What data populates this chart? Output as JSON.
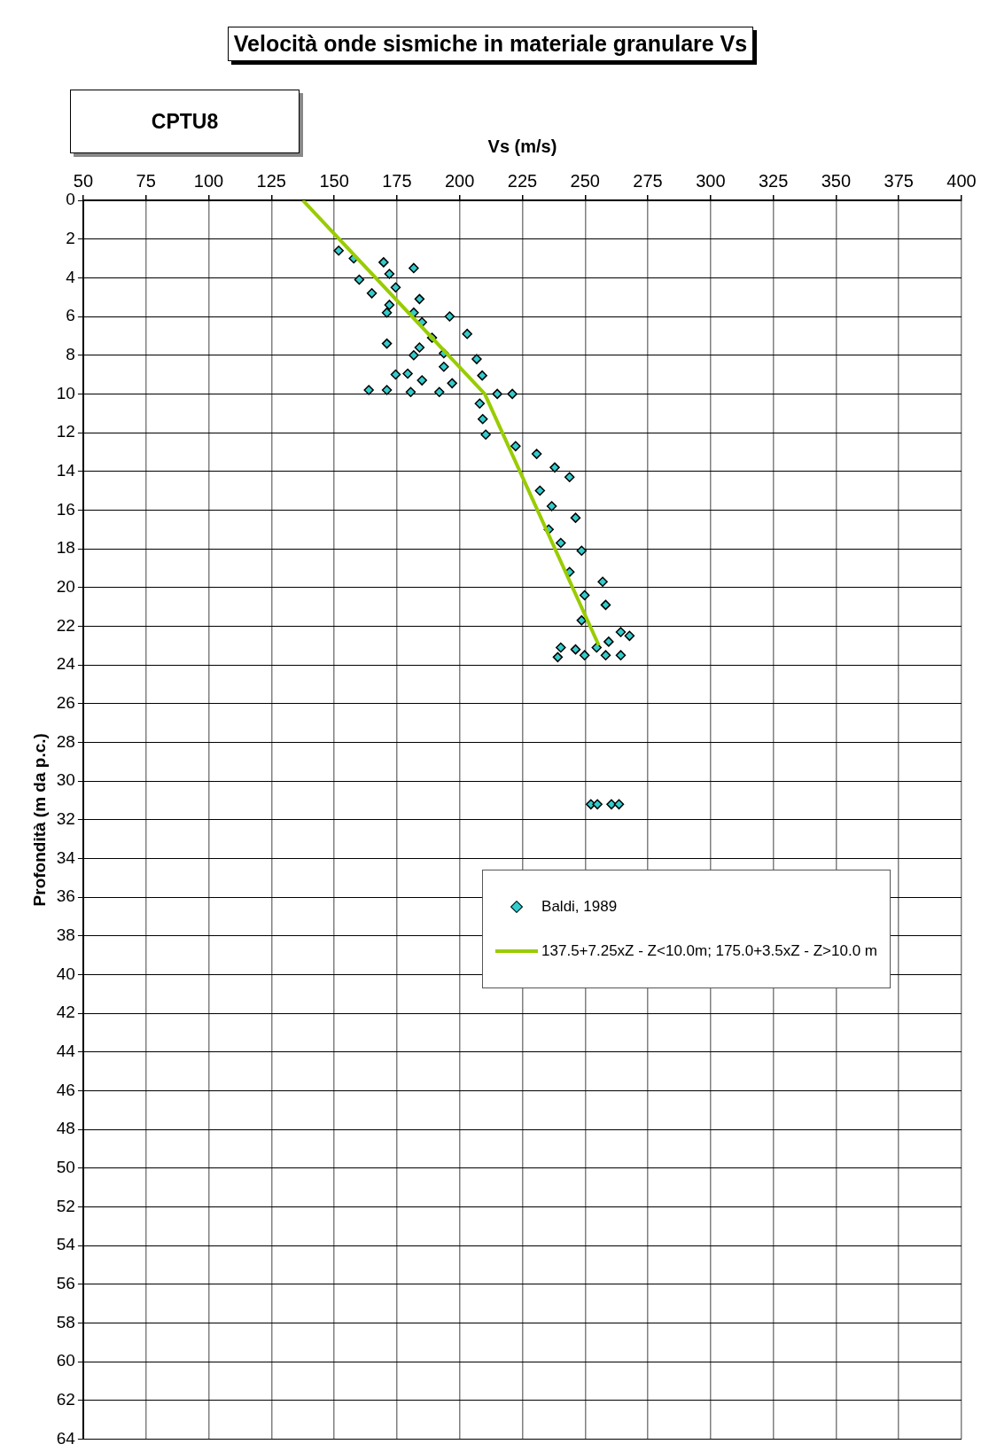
{
  "chart_data": {
    "type": "scatter",
    "title": "Velocità onde sismiche in materiale granulare Vs",
    "xlabel": "Vs (m/s)",
    "ylabel": "Profondità (m da p.c.)",
    "annotations": [
      "CPTU8"
    ],
    "xlim": [
      50,
      400
    ],
    "xticks": [
      50,
      75,
      100,
      125,
      150,
      175,
      200,
      225,
      250,
      275,
      300,
      325,
      350,
      375,
      400
    ],
    "ylim": [
      64,
      0
    ],
    "yticks": [
      0,
      2,
      4,
      6,
      8,
      10,
      12,
      14,
      16,
      18,
      20,
      22,
      24,
      26,
      28,
      30,
      32,
      34,
      36,
      38,
      40,
      42,
      44,
      46,
      48,
      50,
      52,
      54,
      56,
      58,
      60,
      62,
      64
    ],
    "grid": true,
    "legend": "right",
    "series": [
      {
        "name": "Baldi, 1989",
        "type": "scatter",
        "marker": "diamond",
        "color": "#33cccc",
        "x": [
          151.8,
          157.8,
          169.7,
          181.7,
          172,
          160,
          174.5,
          165,
          184,
          172,
          171,
          181.7,
          196,
          185,
          203,
          189,
          171,
          184,
          193.7,
          181.7,
          206.8,
          193.7,
          209,
          174.5,
          179.3,
          185,
          197,
          163.8,
          171,
          180.5,
          191.9,
          215,
          221,
          208,
          209.2,
          210.4,
          222.3,
          230.7,
          237.9,
          243.8,
          232,
          236.7,
          246.2,
          235.5,
          240.3,
          248.6,
          243.8,
          257,
          249.8,
          258.2,
          248.6,
          264.2,
          267.7,
          259.4,
          240.3,
          246.2,
          254.6,
          239.1,
          249.8,
          258.2,
          264.2,
          252.3,
          254.9,
          260.5,
          263.5
        ],
        "values": [
          2.6,
          3.0,
          3.2,
          3.5,
          3.8,
          4.1,
          4.5,
          4.8,
          5.1,
          5.4,
          5.8,
          5.8,
          6.0,
          6.3,
          6.9,
          7.1,
          7.4,
          7.6,
          7.9,
          8.0,
          8.2,
          8.6,
          9.05,
          9.0,
          8.95,
          9.3,
          9.45,
          9.8,
          9.8,
          9.9,
          9.9,
          10.0,
          10.0,
          10.5,
          11.3,
          12.1,
          12.7,
          13.1,
          13.8,
          14.3,
          15.0,
          15.8,
          16.4,
          17.0,
          17.7,
          18.1,
          19.2,
          19.7,
          20.4,
          20.9,
          21.7,
          22.3,
          22.5,
          22.8,
          23.1,
          23.2,
          23.1,
          23.6,
          23.5,
          23.5,
          23.5,
          31.2,
          31.2,
          31.2,
          31.2
        ]
      },
      {
        "name": "137.5+7.25xZ - Z<10.0m; 175.0+3.5xZ - Z>10.0 m",
        "type": "line",
        "marker": "none",
        "color": "#99cc00",
        "x": [
          137.5,
          210,
          255.5
        ],
        "values": [
          0,
          10,
          23
        ]
      }
    ]
  }
}
